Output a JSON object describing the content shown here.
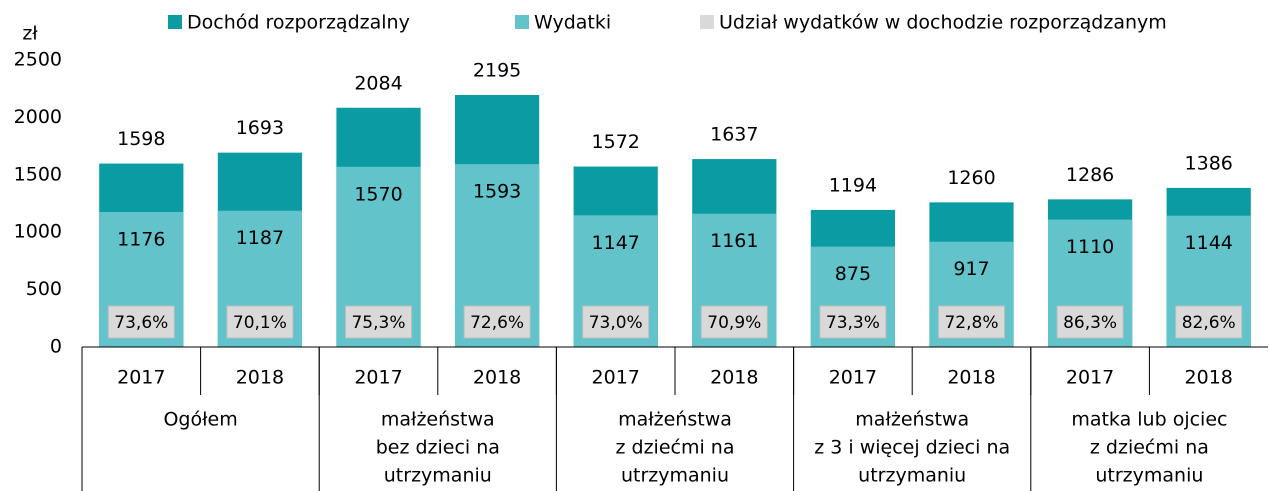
{
  "chart_data": {
    "type": "bar",
    "overlap": true,
    "y_label": "zł",
    "categories": [
      "2017",
      "2018",
      "2017",
      "2018",
      "2017",
      "2018",
      "2017",
      "2018",
      "2017",
      "2018"
    ],
    "groups": [
      {
        "label": [
          "Ogółem"
        ]
      },
      {
        "label": [
          "małżeństwa",
          "bez dzieci na",
          "utrzymaniu"
        ]
      },
      {
        "label": [
          "małżeństwa",
          "z dziećmi na",
          "utrzymaniu"
        ]
      },
      {
        "label": [
          "małżeństwa",
          "z 3 i więcej dzieci na",
          "utrzymaniu"
        ]
      },
      {
        "label": [
          "matka lub ojciec",
          "z dziećmi na",
          "utrzymaniu"
        ]
      }
    ],
    "series": [
      {
        "name": "Dochód rozporządzalny",
        "color": "#0b9ba3",
        "values": [
          1598,
          1693,
          2084,
          2195,
          1572,
          1637,
          1194,
          1260,
          1286,
          1386
        ]
      },
      {
        "name": "Wydatki",
        "color": "#63c3ca",
        "values": [
          1176,
          1187,
          1570,
          1593,
          1147,
          1161,
          875,
          917,
          1110,
          1144
        ]
      },
      {
        "name": "Udział wydatków w dochodzie rozporządzanym",
        "color": "#d9d9d9",
        "values": [
          73.6,
          70.1,
          75.3,
          72.6,
          73.0,
          70.9,
          73.3,
          72.8,
          86.3,
          82.6
        ],
        "value_labels": [
          "73,6%",
          "70,1%",
          "75,3%",
          "72,6%",
          "73,0%",
          "70,9%",
          "73,3%",
          "72,8%",
          "86,3%",
          "82,6%"
        ]
      }
    ],
    "ylim": [
      0,
      2500
    ],
    "yticks": [
      0,
      500,
      1000,
      1500,
      2000,
      2500
    ],
    "grid": false
  }
}
